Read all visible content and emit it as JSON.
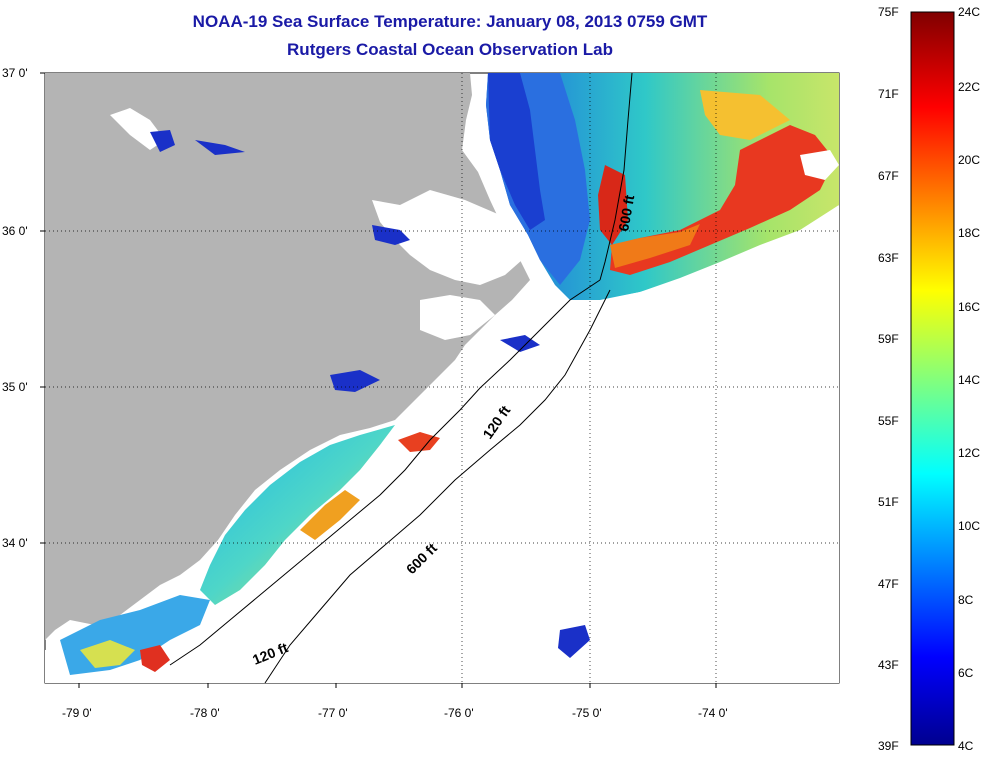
{
  "title": {
    "line1": "NOAA-19 Sea Surface Temperature:  January 08, 2013 0759 GMT",
    "line2": "Rutgers Coastal Ocean Observation Lab"
  },
  "map": {
    "lat_labels": [
      "37 0'",
      "36 0'",
      "35 0'",
      "34 0'"
    ],
    "lon_labels": [
      "-79 0'",
      "-78 0'",
      "-77 0'",
      "-76 0'",
      "-75 0'",
      "-74 0'"
    ],
    "contour_labels": [
      "600 ft",
      "120 ft",
      "600 ft",
      "120 ft"
    ],
    "colors": {
      "land": "#b4b4b4",
      "no_data": "#ffffff"
    }
  },
  "colorbar": {
    "fahrenheit_labels": [
      "75F",
      "71F",
      "67F",
      "63F",
      "59F",
      "55F",
      "51F",
      "47F",
      "43F",
      "39F"
    ],
    "celsius_labels": [
      "24C",
      "22C",
      "20C",
      "18C",
      "16C",
      "14C",
      "12C",
      "10C",
      "8C",
      "6C",
      "4C"
    ],
    "scale": "jet",
    "min_c": 4,
    "max_c": 24
  }
}
